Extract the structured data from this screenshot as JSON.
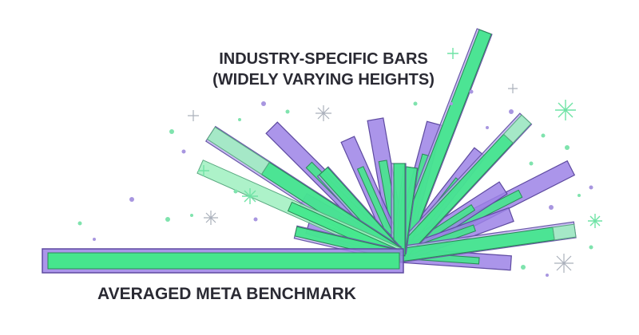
{
  "annotations": {
    "top_line_1": "INDUSTRY-SPECIFIC BARS",
    "top_line_2": "(WIDELY VARYING HEIGHTS)",
    "bottom": "AVERAGED META BENCHMARK"
  }
}
